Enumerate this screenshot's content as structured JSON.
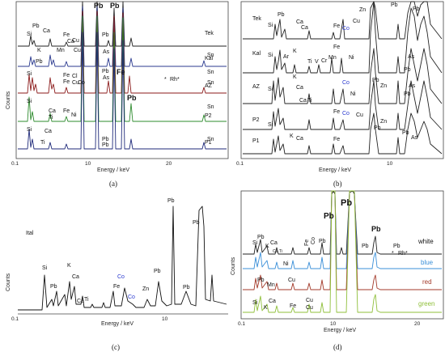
{
  "chart_data": [
    {
      "id": "a",
      "type": "line",
      "caption": "(a)",
      "xlabel": "Energy / keV",
      "ylabel": "Counts",
      "x_ticks": [
        "0.1",
        "10",
        "20"
      ],
      "series": [
        {
          "name": "Tek",
          "color": "#222222"
        },
        {
          "name": "Kal",
          "color": "#2b3a8f"
        },
        {
          "name": "AZ",
          "color": "#8b1a1a"
        },
        {
          "name": "P2",
          "color": "#2e8b2e"
        },
        {
          "name": "P1",
          "color": "#1f2a7a"
        }
      ],
      "peak_labels": [
        "Pb",
        "Pb",
        "Pb",
        "Si",
        "Ca",
        "Fe",
        "K",
        "Mn",
        "Cu",
        "Ca",
        "Cu",
        "Pb",
        "As",
        "Si",
        "Fe",
        "Fe",
        "Cl",
        "Cu",
        "Co",
        "Pb",
        "Pb",
        "As",
        "Fe",
        "Sn",
        "Sn",
        "Sn",
        "Sn",
        "Sn",
        "Si",
        "Ti",
        "Ca",
        "Fe",
        "Ni",
        "Si",
        "Ca",
        "Ti",
        "Pb",
        "Pb",
        "Pb",
        "Rh*",
        "*"
      ]
    },
    {
      "id": "b",
      "type": "line",
      "caption": "(b)",
      "xlabel": "Energy / keV",
      "ylabel": "",
      "x_ticks": [
        "0.1",
        "10"
      ],
      "series": [
        {
          "name": "Tek",
          "color": "#222222"
        },
        {
          "name": "Kal",
          "color": "#222222"
        },
        {
          "name": "AZ",
          "color": "#222222"
        },
        {
          "name": "P2",
          "color": "#222222"
        },
        {
          "name": "P1",
          "color": "#222222"
        }
      ],
      "peak_labels": [
        "Pb",
        "Si",
        "Ca",
        "Ca",
        "Fe",
        "Co",
        "Zn",
        "Cu",
        "Pb",
        "Pb",
        "Si",
        "Ar",
        "K",
        "Ti",
        "V",
        "Cr",
        "Mn",
        "Fe",
        "Ni",
        "As",
        "Pb",
        "Si",
        "K",
        "Co",
        "Ni",
        "Pb",
        "Zn",
        "As",
        "Pb",
        "Ca",
        "Ca",
        "Ti",
        "Fe",
        "Co",
        "Cu",
        "Zn",
        "Si",
        "K",
        "Ca",
        "Fe",
        "Pb",
        "Pb",
        "As"
      ]
    },
    {
      "id": "c",
      "type": "line",
      "caption": "(c)",
      "xlabel": "Energy / keV",
      "ylabel": "Counts",
      "x_ticks": [
        "0.1",
        "10"
      ],
      "series": [
        {
          "name": "Ital",
          "color": "#111111"
        }
      ],
      "peak_labels": [
        "Si",
        "Pb",
        "K",
        "Ca",
        "Ca",
        "Ti",
        "Fe",
        "Co",
        "Co",
        "Zn",
        "Pb",
        "Pb",
        "Pb",
        "Pb"
      ]
    },
    {
      "id": "d",
      "type": "line",
      "caption": "(d)",
      "xlabel": "Energy / keV",
      "ylabel": "Counts",
      "x_ticks": [
        "0.1",
        "10",
        "20"
      ],
      "series": [
        {
          "name": "white",
          "color": "#222222"
        },
        {
          "name": "blue",
          "color": "#3a8fd8"
        },
        {
          "name": "red",
          "color": "#a33a2a"
        },
        {
          "name": "green",
          "color": "#8fbf3a"
        }
      ],
      "peak_labels": [
        "Pb",
        "Pb",
        "Pb",
        "Si",
        "Pb",
        "Ca",
        "K",
        "Ca",
        "Ti",
        "Fe",
        "Co",
        "Pb",
        "Pb",
        "Pb",
        "Ni",
        "Cu",
        "Pb",
        "Mn",
        "Cu",
        "Si",
        "K",
        "Ca",
        "Fe",
        "Cu",
        "Rh*",
        "*"
      ]
    }
  ]
}
